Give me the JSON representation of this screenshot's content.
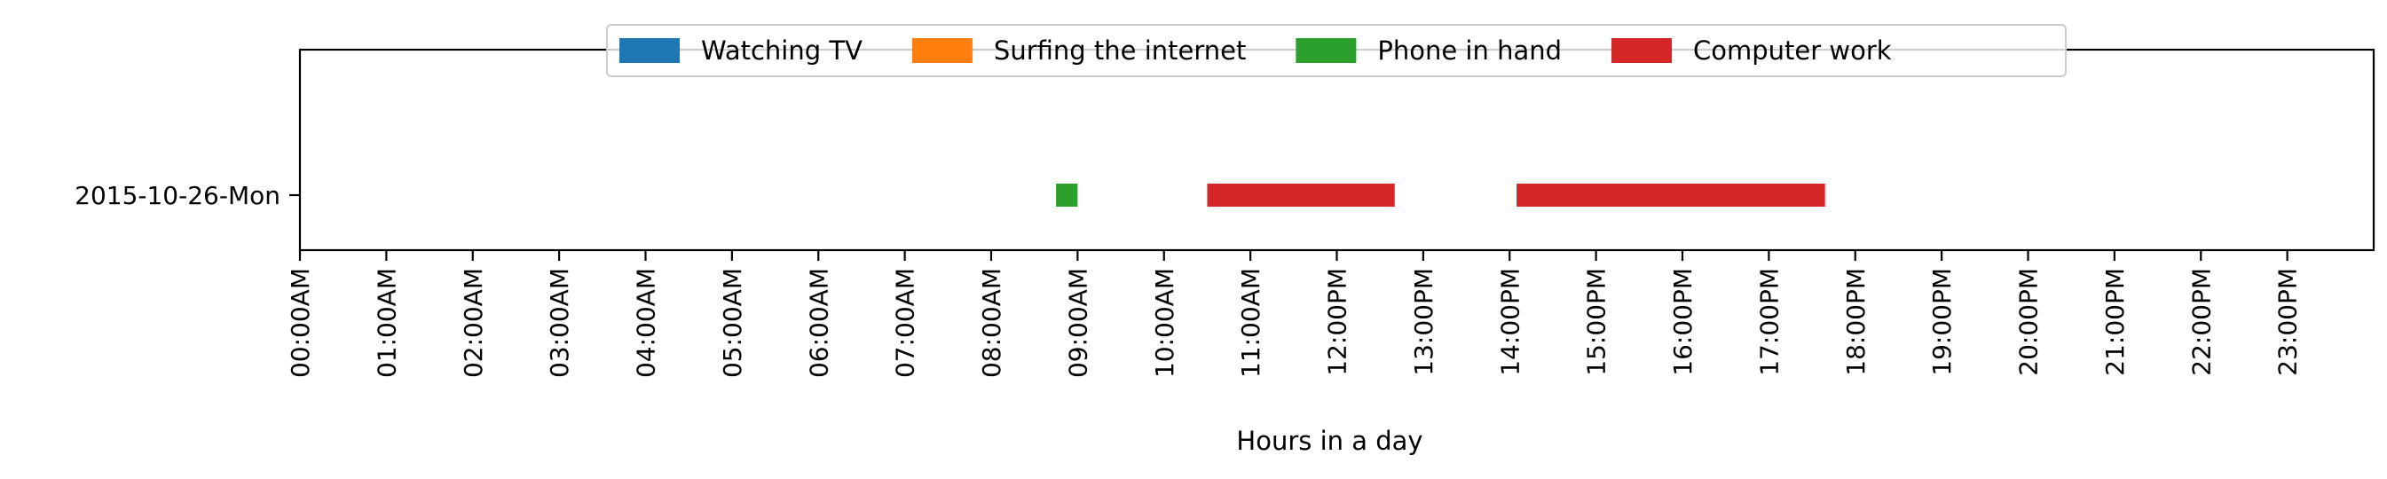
{
  "chart_data": {
    "type": "timeline",
    "xlabel": "Hours in a day",
    "ylabel": "",
    "x_unit": "hour",
    "xlim": [
      0,
      24
    ],
    "x_ticks": [
      {
        "value": 0,
        "label": "00:00AM"
      },
      {
        "value": 1,
        "label": "01:00AM"
      },
      {
        "value": 2,
        "label": "02:00AM"
      },
      {
        "value": 3,
        "label": "03:00AM"
      },
      {
        "value": 4,
        "label": "04:00AM"
      },
      {
        "value": 5,
        "label": "05:00AM"
      },
      {
        "value": 6,
        "label": "06:00AM"
      },
      {
        "value": 7,
        "label": "07:00AM"
      },
      {
        "value": 8,
        "label": "08:00AM"
      },
      {
        "value": 9,
        "label": "09:00AM"
      },
      {
        "value": 10,
        "label": "10:00AM"
      },
      {
        "value": 11,
        "label": "11:00AM"
      },
      {
        "value": 12,
        "label": "12:00PM"
      },
      {
        "value": 13,
        "label": "13:00PM"
      },
      {
        "value": 14,
        "label": "14:00PM"
      },
      {
        "value": 15,
        "label": "15:00PM"
      },
      {
        "value": 16,
        "label": "16:00PM"
      },
      {
        "value": 17,
        "label": "17:00PM"
      },
      {
        "value": 18,
        "label": "18:00PM"
      },
      {
        "value": 19,
        "label": "19:00PM"
      },
      {
        "value": 20,
        "label": "20:00PM"
      },
      {
        "value": 21,
        "label": "21:00PM"
      },
      {
        "value": 22,
        "label": "22:00PM"
      },
      {
        "value": 23,
        "label": "23:00PM"
      }
    ],
    "categories": [
      "2015-10-26-Mon"
    ],
    "grid": false,
    "legend": {
      "placement": "top-center",
      "entries": [
        {
          "name": "Watching TV",
          "color": "#1f77b4"
        },
        {
          "name": "Surfing the internet",
          "color": "#ff7f0e"
        },
        {
          "name": "Phone in hand",
          "color": "#2ca02c"
        },
        {
          "name": "Computer work",
          "color": "#d62728"
        }
      ]
    },
    "series": [
      {
        "name": "Watching TV",
        "color": "#1f77b4",
        "intervals": []
      },
      {
        "name": "Surfing the internet",
        "color": "#ff7f0e",
        "intervals": []
      },
      {
        "name": "Phone in hand",
        "color": "#2ca02c",
        "intervals": [
          {
            "category": "2015-10-26-Mon",
            "start": 8.75,
            "end": 9.0
          }
        ]
      },
      {
        "name": "Computer work",
        "color": "#d62728",
        "intervals": [
          {
            "category": "2015-10-26-Mon",
            "start": 10.5,
            "end": 12.67
          },
          {
            "category": "2015-10-26-Mon",
            "start": 14.08,
            "end": 17.65
          }
        ]
      }
    ]
  }
}
